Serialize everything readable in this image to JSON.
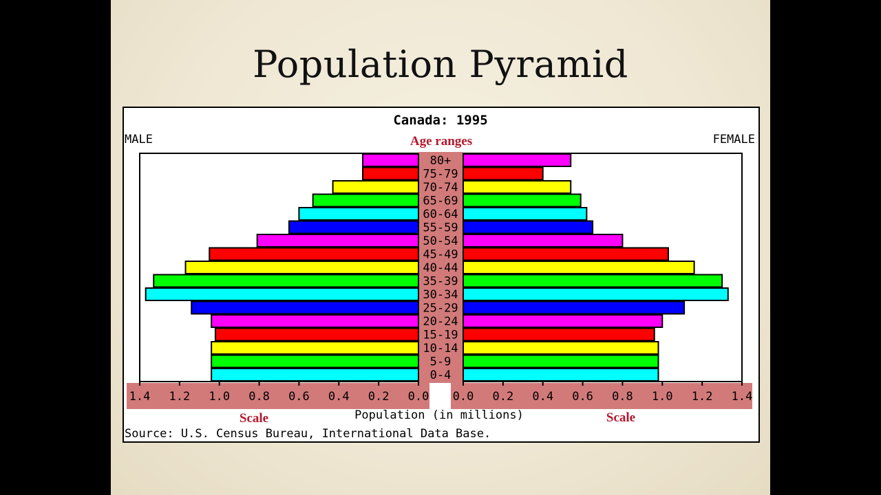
{
  "slide": {
    "title": "Population Pyramid"
  },
  "annotations": {
    "age_ranges": "Age ranges",
    "scale_left": "Scale",
    "scale_right": "Scale"
  },
  "colors": {
    "magenta": "#ff00ff",
    "red": "#ff0000",
    "yellow": "#ffff00",
    "green": "#00ff00",
    "cyan": "#00ffff",
    "blue": "#0000ff",
    "highlight": "#d27a7a",
    "annotation_red": "#b3182e"
  },
  "chart_data": {
    "type": "bar",
    "orientation": "horizontal-pyramid",
    "title": "Canada: 1995",
    "left_label": "MALE",
    "right_label": "FEMALE",
    "xlabel": "Population (in millions)",
    "source": "Source: U.S. Census Bureau, International Data Base.",
    "xlim": [
      0,
      1.4
    ],
    "ticks": [
      "1.4",
      "1.2",
      "1.0",
      "0.8",
      "0.6",
      "0.4",
      "0.2",
      "0.0"
    ],
    "ticks_right": [
      "0.0",
      "0.2",
      "0.4",
      "0.6",
      "0.8",
      "1.0",
      "1.2",
      "1.4"
    ],
    "categories": [
      "80+",
      "75-79",
      "70-74",
      "65-69",
      "60-64",
      "55-59",
      "50-54",
      "45-49",
      "40-44",
      "35-39",
      "30-34",
      "25-29",
      "20-24",
      "15-19",
      "10-14",
      "5-9",
      "0-4"
    ],
    "bar_colors": [
      "magenta",
      "red",
      "yellow",
      "green",
      "cyan",
      "blue",
      "magenta",
      "red",
      "yellow",
      "green",
      "cyan",
      "blue",
      "magenta",
      "red",
      "yellow",
      "green",
      "cyan"
    ],
    "series": [
      {
        "name": "MALE",
        "values": [
          0.28,
          0.28,
          0.43,
          0.53,
          0.6,
          0.65,
          0.81,
          1.05,
          1.17,
          1.33,
          1.37,
          1.14,
          1.04,
          1.02,
          1.04,
          1.04,
          1.04
        ]
      },
      {
        "name": "FEMALE",
        "values": [
          0.54,
          0.4,
          0.54,
          0.59,
          0.62,
          0.65,
          0.8,
          1.03,
          1.16,
          1.3,
          1.33,
          1.11,
          1.0,
          0.96,
          0.98,
          0.98,
          0.98
        ]
      }
    ],
    "grid": false,
    "legend": "none"
  }
}
